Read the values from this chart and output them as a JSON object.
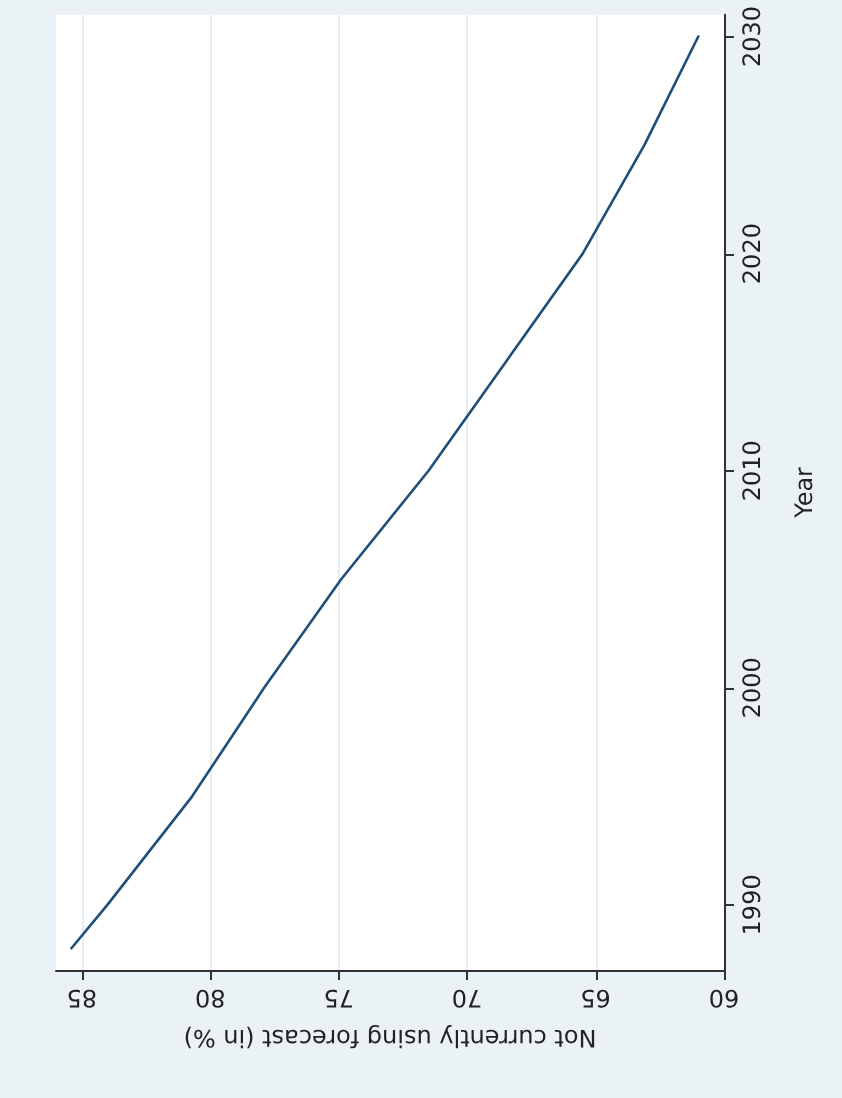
{
  "chart_data": {
    "type": "line",
    "xlabel": "Not currently using forecast (in %)",
    "ylabel": "Year",
    "x": [
      85.4,
      84.0,
      80.7,
      77.9,
      74.9,
      71.5,
      68.5,
      65.5,
      63.1,
      61.0
    ],
    "series": [
      {
        "color": "#1f4e79",
        "values": [
          1988,
          1990,
          1995,
          2000,
          2005,
          2010,
          2015,
          2020,
          2025,
          2030
        ]
      }
    ],
    "xlim": [
      86,
      60
    ],
    "xticks": [
      85,
      80,
      75,
      70,
      65,
      60
    ],
    "ylim": [
      1987,
      2031
    ],
    "yticks": [
      1990,
      2000,
      2010,
      2020,
      2030
    ],
    "grid": "x",
    "marker": "none",
    "line_style": "solid"
  }
}
